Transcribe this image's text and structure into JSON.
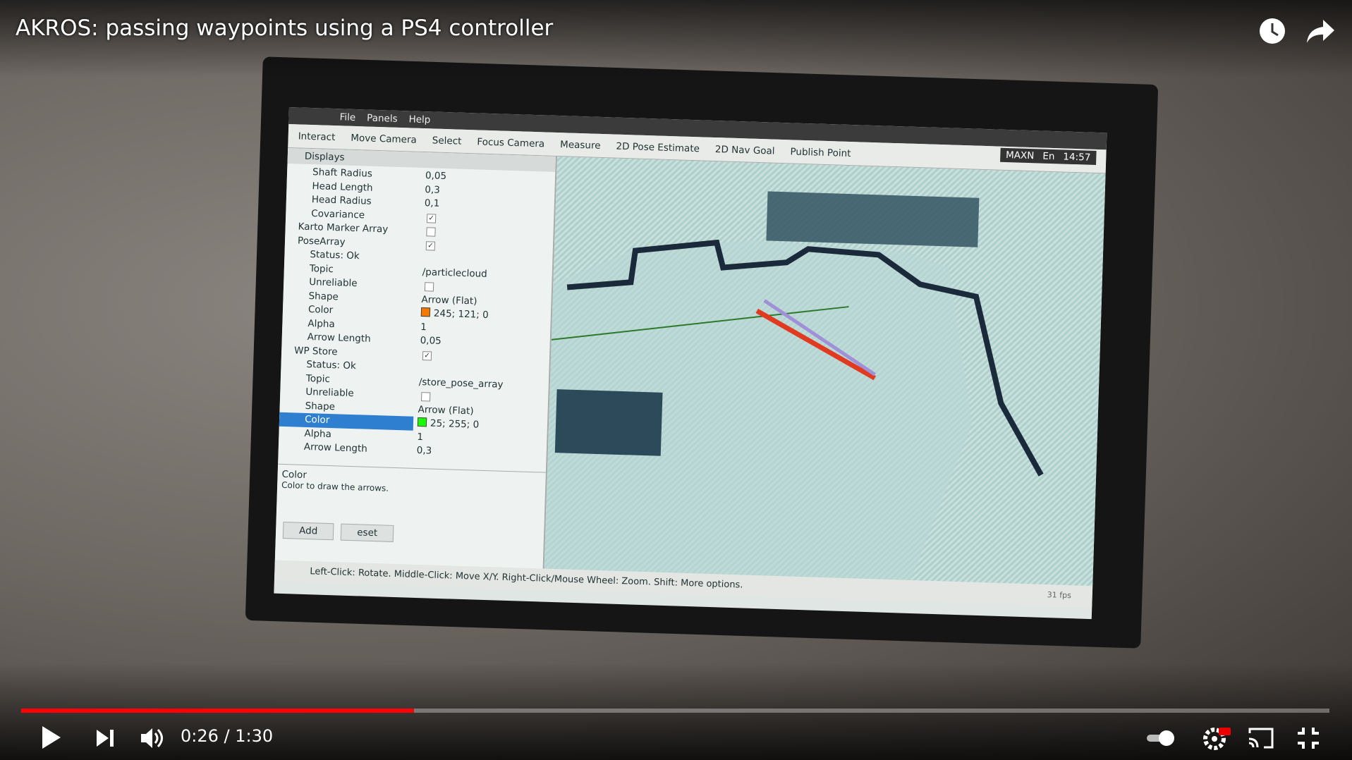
{
  "video": {
    "title": "AKROS: passing waypoints using a PS4 controller",
    "time": "0:26 / 1:30",
    "played_fraction": 0.3
  },
  "rviz": {
    "menu": [
      "File",
      "Panels",
      "Help"
    ],
    "toolbar": [
      "Interact",
      "Move Camera",
      "Select",
      "Focus Camera",
      "Measure",
      "2D Pose Estimate",
      "2D Nav Goal",
      "Publish Point"
    ],
    "tray": [
      "MAXN",
      "En",
      "14:57"
    ],
    "displays_title": "Displays",
    "rows": [
      {
        "name": "Shaft Radius",
        "value": "0,05"
      },
      {
        "name": "Head Length",
        "value": "0,3"
      },
      {
        "name": "Head Radius",
        "value": "0,1"
      },
      {
        "name": "Covariance",
        "checked": true
      },
      {
        "name": "Karto Marker Array",
        "checked": false
      },
      {
        "name": "PoseArray",
        "checked": true
      },
      {
        "name": "Status: Ok"
      },
      {
        "name": "Topic",
        "value": "/particlecloud"
      },
      {
        "name": "Unreliable",
        "checked": false
      },
      {
        "name": "Shape",
        "value": "Arrow (Flat)"
      },
      {
        "name": "Color",
        "value": "245; 121; 0",
        "swatch": "#f57900"
      },
      {
        "name": "Alpha",
        "value": "1"
      },
      {
        "name": "Arrow Length",
        "value": "0,05"
      },
      {
        "name": "WP Store",
        "checked": true
      },
      {
        "name": "Status: Ok"
      },
      {
        "name": "Topic",
        "value": "/store_pose_array"
      },
      {
        "name": "Unreliable",
        "checked": false
      },
      {
        "name": "Shape",
        "value": "Arrow (Flat)"
      },
      {
        "name": "Color",
        "value": "25; 255; 0",
        "swatch": "#19ff00",
        "selected": true
      },
      {
        "name": "Alpha",
        "value": "1"
      },
      {
        "name": "Arrow Length",
        "value": "0,3"
      }
    ],
    "description_title": "Color",
    "description": "Color to draw the arrows.",
    "buttons": [
      "Add",
      "eset"
    ],
    "status": "Left-Click: Rotate. Middle-Click: Move X/Y. Right-Click/Mouse Wheel: Zoom. Shift: More options.",
    "fps": "31 fps"
  }
}
